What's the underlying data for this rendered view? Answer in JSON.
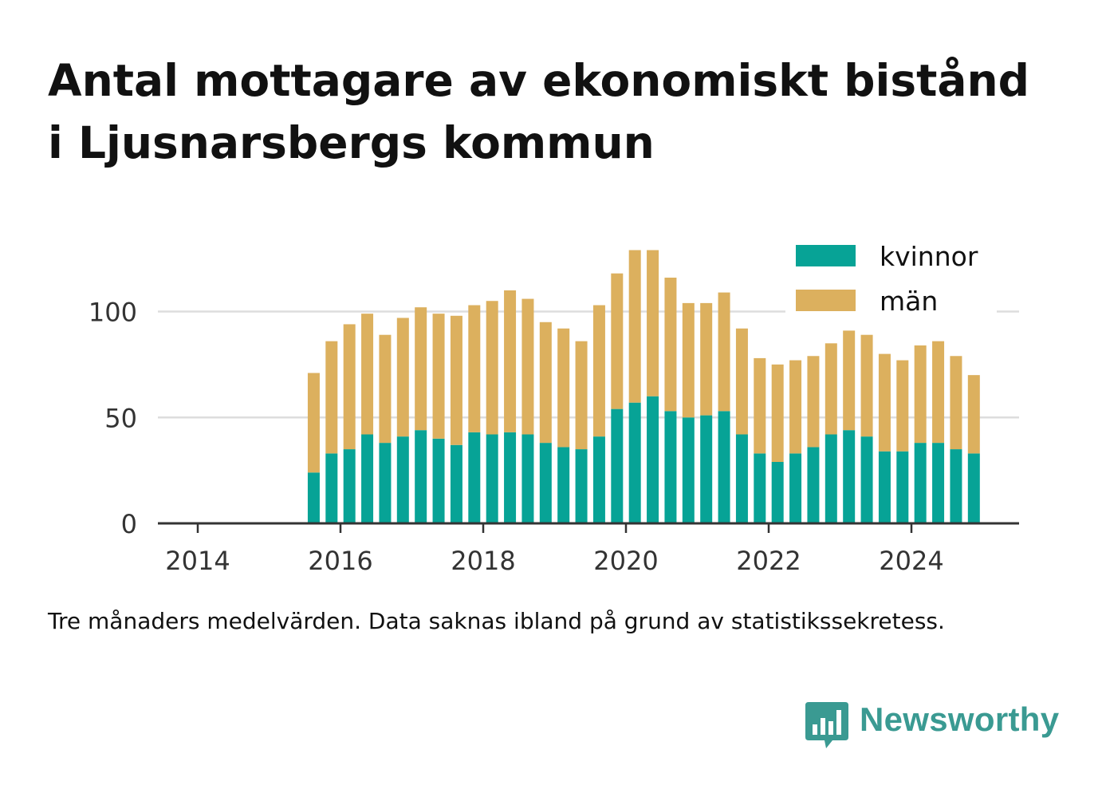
{
  "title_lines": [
    "Antal mottagare av ekonomiskt bistånd",
    "i Ljusnarsbergs kommun"
  ],
  "caption": "Tre månaders medelvärden. Data saknas ibland på grund av statistikssekretess.",
  "brand": {
    "name": "Newsworthy",
    "icon": "bar-chart-speech-bubble-icon",
    "color": "#3a9a92"
  },
  "chart_data": {
    "type": "bar",
    "stacked": true,
    "x_ticks": [
      "2014",
      "2016",
      "2018",
      "2020",
      "2022",
      "2024"
    ],
    "y_ticks": [
      0,
      50,
      100
    ],
    "ylim": [
      0,
      130
    ],
    "grid": true,
    "legend_position": "top-right",
    "legend": [
      {
        "label": "kvinnor",
        "color": "#07a396"
      },
      {
        "label": "män",
        "color": "#dcb05e"
      }
    ],
    "x": [
      "2015-08",
      "2015-11",
      "2016-02",
      "2016-05",
      "2016-08",
      "2016-11",
      "2017-02",
      "2017-05",
      "2017-08",
      "2017-11",
      "2018-02",
      "2018-05",
      "2018-08",
      "2018-11",
      "2019-02",
      "2019-05",
      "2019-08",
      "2019-11",
      "2020-02",
      "2020-05",
      "2020-08",
      "2020-11",
      "2021-02",
      "2021-05",
      "2021-08",
      "2021-11",
      "2022-02",
      "2022-05",
      "2022-08",
      "2022-11",
      "2023-02",
      "2023-05",
      "2023-08",
      "2023-11",
      "2024-02",
      "2024-05",
      "2024-08",
      "2024-11"
    ],
    "series": [
      {
        "name": "kvinnor",
        "color": "#07a396",
        "values": [
          24,
          33,
          35,
          42,
          38,
          41,
          44,
          40,
          37,
          43,
          42,
          43,
          42,
          38,
          36,
          35,
          41,
          54,
          57,
          60,
          53,
          50,
          51,
          53,
          42,
          33,
          29,
          33,
          36,
          42,
          44,
          41,
          34,
          34,
          38,
          38,
          35,
          33
        ]
      },
      {
        "name": "män",
        "color": "#dcb05e",
        "values": [
          47,
          53,
          59,
          57,
          51,
          56,
          58,
          59,
          61,
          60,
          63,
          67,
          64,
          57,
          56,
          51,
          62,
          64,
          72,
          69,
          63,
          54,
          53,
          56,
          50,
          45,
          46,
          44,
          43,
          43,
          47,
          48,
          46,
          43,
          46,
          48,
          44,
          37
        ]
      }
    ]
  }
}
